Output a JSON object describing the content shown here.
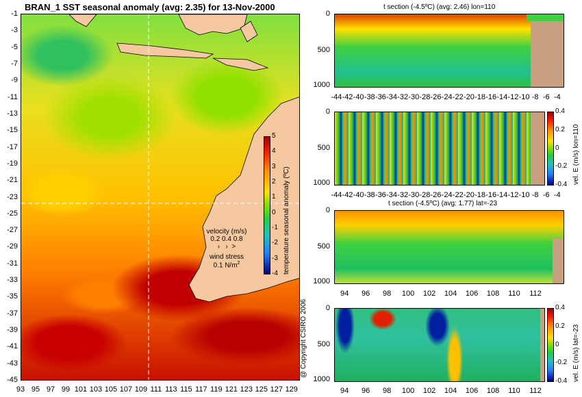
{
  "map": {
    "title": "BRAN_1 SST seasonal anomaly (avg: 2.35) for 13-Nov-2000",
    "lat_ticks": [
      "-1",
      "-3",
      "-5",
      "-7",
      "-9",
      "-11",
      "-13",
      "-15",
      "-17",
      "-19",
      "-21",
      "-23",
      "-25",
      "-27",
      "-29",
      "-31",
      "-33",
      "-35",
      "-37",
      "-39",
      "-41",
      "-43",
      "-45"
    ],
    "lon_ticks": [
      "93",
      "95",
      "97",
      "99",
      "101",
      "103",
      "105",
      "107",
      "109",
      "111",
      "113",
      "115",
      "117",
      "119",
      "121",
      "123",
      "125",
      "127",
      "129"
    ],
    "colorbar": {
      "label": "temperature seasonal anomaly (ºC)",
      "ticks": [
        "5",
        "4",
        "3",
        "2",
        "1",
        "0",
        "-1",
        "-2",
        "-3",
        "-4"
      ]
    },
    "velocity_legend": {
      "title": "velocity (m/s)",
      "scale": "0.2 0.4 0.8",
      "wind_title": "wind stress",
      "wind_value": "0.1 N/m",
      "wind_exp": "2"
    },
    "copyright": "@ Copyright CSIRO 2006"
  },
  "panels": [
    {
      "title": "t section (-4.5ºC) (avg: 2.46) lon=110",
      "y_ticks": [
        "0",
        "500",
        "1000"
      ],
      "x_ticks": [
        "-44",
        "-42",
        "-40",
        "-38",
        "-36",
        "-34",
        "-32",
        "-30",
        "-28",
        "-26",
        "-24",
        "-22",
        "-20",
        "-18",
        "-16",
        "-14",
        "-12",
        "-10",
        "-8",
        "-6",
        "-4"
      ],
      "colorbar": null
    },
    {
      "title": "",
      "y_ticks": [
        "0",
        "500",
        "1000"
      ],
      "x_ticks": [
        "-44",
        "-42",
        "-40",
        "-38",
        "-36",
        "-34",
        "-32",
        "-30",
        "-28",
        "-26",
        "-24",
        "-22",
        "-20",
        "-18",
        "-16",
        "-14",
        "-12",
        "-10",
        "-8",
        "-6",
        "-4"
      ],
      "colorbar": {
        "label": "vel. E (m/s) lon=110",
        "ticks": [
          "0.4",
          "0.2",
          "0",
          "-0.2",
          "-0.4"
        ]
      }
    },
    {
      "title": "t section (-4.5ºC) (avg: 1.77) lat=-23",
      "y_ticks": [
        "0",
        "500",
        "1000"
      ],
      "x_ticks": [
        "94",
        "96",
        "98",
        "100",
        "102",
        "104",
        "106",
        "108",
        "110",
        "112"
      ],
      "colorbar": null
    },
    {
      "title": "",
      "y_ticks": [
        "0",
        "500",
        "1000"
      ],
      "x_ticks": [
        "94",
        "96",
        "98",
        "100",
        "102",
        "104",
        "106",
        "108",
        "110",
        "112"
      ],
      "colorbar": {
        "label": "vel. E (m/s) lat=-23",
        "ticks": [
          "0.4",
          "0.2",
          "0",
          "-0.2",
          "-0.4"
        ]
      }
    }
  ],
  "colors": {
    "land": "#f6c8a0",
    "section_land": "#c8a080",
    "warm": "#c80000",
    "cool": "#20c040"
  }
}
